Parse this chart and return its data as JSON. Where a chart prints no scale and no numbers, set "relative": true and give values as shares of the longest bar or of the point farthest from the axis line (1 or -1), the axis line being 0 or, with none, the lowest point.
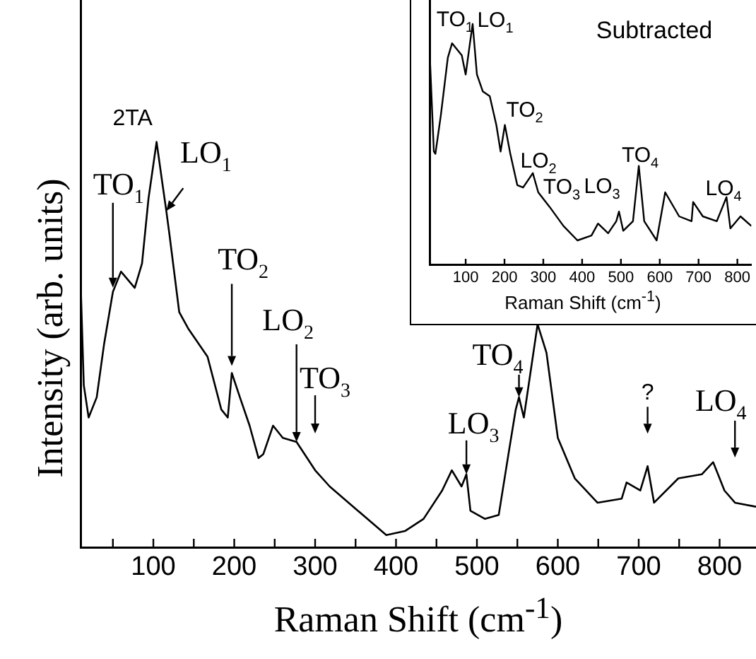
{
  "chart_data": [
    {
      "type": "line",
      "relative": true,
      "xlabel": "Raman Shift (cm$^{-1}$)",
      "ylabel": "Intensity (arb. units)",
      "color": "#000000",
      "marker": "none",
      "grid": false,
      "legend": false,
      "tick_labels": "x",
      "x": [
        10,
        14,
        20,
        30,
        39,
        50,
        60,
        77,
        86,
        94,
        104,
        111,
        116,
        120,
        132,
        143,
        167,
        184,
        192,
        197,
        207,
        219,
        230,
        236,
        248,
        260,
        277,
        300,
        318,
        353,
        388,
        411,
        434,
        457,
        469,
        481,
        487,
        492,
        510,
        527,
        539,
        548,
        552,
        558,
        575,
        586,
        600,
        621,
        649,
        679,
        685,
        702,
        711,
        719,
        749,
        778,
        792,
        806,
        819,
        845
      ],
      "values": [
        0.66,
        0.4,
        0.32,
        0.37,
        0.5,
        0.63,
        0.68,
        0.64,
        0.7,
        0.86,
        1.0,
        0.9,
        0.83,
        0.77,
        0.58,
        0.54,
        0.47,
        0.34,
        0.32,
        0.43,
        0.37,
        0.3,
        0.22,
        0.23,
        0.3,
        0.27,
        0.26,
        0.19,
        0.15,
        0.09,
        0.03,
        0.04,
        0.07,
        0.14,
        0.19,
        0.15,
        0.18,
        0.09,
        0.07,
        0.08,
        0.23,
        0.34,
        0.37,
        0.32,
        0.55,
        0.48,
        0.27,
        0.17,
        0.11,
        0.12,
        0.16,
        0.14,
        0.2,
        0.11,
        0.17,
        0.18,
        0.21,
        0.14,
        0.11,
        0.1
      ],
      "xlim": [
        10,
        845
      ],
      "xticks": [
        {
          "value": 50,
          "label": null
        },
        100,
        {
          "value": 150,
          "label": null
        },
        200,
        {
          "value": 250,
          "label": null
        },
        300,
        {
          "value": 350,
          "label": null
        },
        400,
        {
          "value": 450,
          "label": null
        },
        500,
        {
          "value": 550,
          "label": null
        },
        600,
        {
          "value": 650,
          "label": null
        },
        700,
        {
          "value": 750,
          "label": null
        },
        800
      ],
      "annotations": [
        {
          "text": "TO$_{1}$",
          "x": 50,
          "y": 0.63
        },
        {
          "text": "2TA",
          "x": 104,
          "y": 1.0
        },
        {
          "text": "LO$_{1}$",
          "x": 116,
          "y": 0.83
        },
        {
          "text": "TO$_{2}$",
          "x": 197,
          "y": 0.43
        },
        {
          "text": "LO$_{2}$",
          "x": 277,
          "y": 0.26
        },
        {
          "text": "TO$_{3}$",
          "x": 300,
          "y": 0.19
        },
        {
          "text": "LO$_{3}$",
          "x": 487,
          "y": 0.18
        },
        {
          "text": "TO$_{4}$",
          "x": 552,
          "y": 0.37
        },
        {
          "text": "?",
          "x": 711,
          "y": 0.2
        },
        {
          "text": "LO$_{4}$",
          "x": 819,
          "y": 0.11
        }
      ]
    },
    {
      "type": "line",
      "relative": true,
      "xlabel": "Raman Shift (cm$^{-1}$)",
      "color": "#000000",
      "marker": "none",
      "grid": false,
      "legend": false,
      "tick_labels": "x",
      "x": [
        7,
        18,
        22,
        36,
        54,
        65,
        90,
        100,
        111,
        118,
        129,
        144,
        162,
        179,
        190,
        201,
        215,
        233,
        248,
        273,
        287,
        316,
        352,
        388,
        424,
        441,
        467,
        488,
        495,
        506,
        531,
        546,
        560,
        592,
        614,
        650,
        682,
        686,
        711,
        747,
        772,
        782,
        808,
        836
      ],
      "values": [
        0.89,
        0.47,
        0.46,
        0.62,
        0.86,
        0.92,
        0.87,
        0.79,
        0.92,
        1.0,
        0.79,
        0.72,
        0.7,
        0.58,
        0.47,
        0.58,
        0.46,
        0.33,
        0.32,
        0.38,
        0.3,
        0.24,
        0.16,
        0.1,
        0.12,
        0.17,
        0.13,
        0.18,
        0.22,
        0.14,
        0.18,
        0.41,
        0.18,
        0.1,
        0.3,
        0.2,
        0.18,
        0.26,
        0.2,
        0.18,
        0.28,
        0.15,
        0.2,
        0.16
      ],
      "xlim": [
        7,
        836
      ],
      "xticks": [
        100,
        200,
        300,
        400,
        500,
        600,
        700,
        800
      ],
      "annotations": [
        {
          "text": "TO$_{1}$",
          "x": 65,
          "y": 0.92
        },
        {
          "text": "LO$_{1}$",
          "x": 118,
          "y": 1.0
        },
        {
          "text": "TO$_{2}$",
          "x": 201,
          "y": 0.58
        },
        {
          "text": "LO$_{2}$",
          "x": 273,
          "y": 0.38
        },
        {
          "text": "TO$_{3}$",
          "x": 300,
          "y": 0.27
        },
        {
          "text": "LO$_{3}$",
          "x": 495,
          "y": 0.22
        },
        {
          "text": "TO$_{4}$",
          "x": 546,
          "y": 0.41
        },
        {
          "text": "LO$_{4}$",
          "x": 808,
          "y": 0.2
        },
        "Subtracted"
      ]
    }
  ]
}
